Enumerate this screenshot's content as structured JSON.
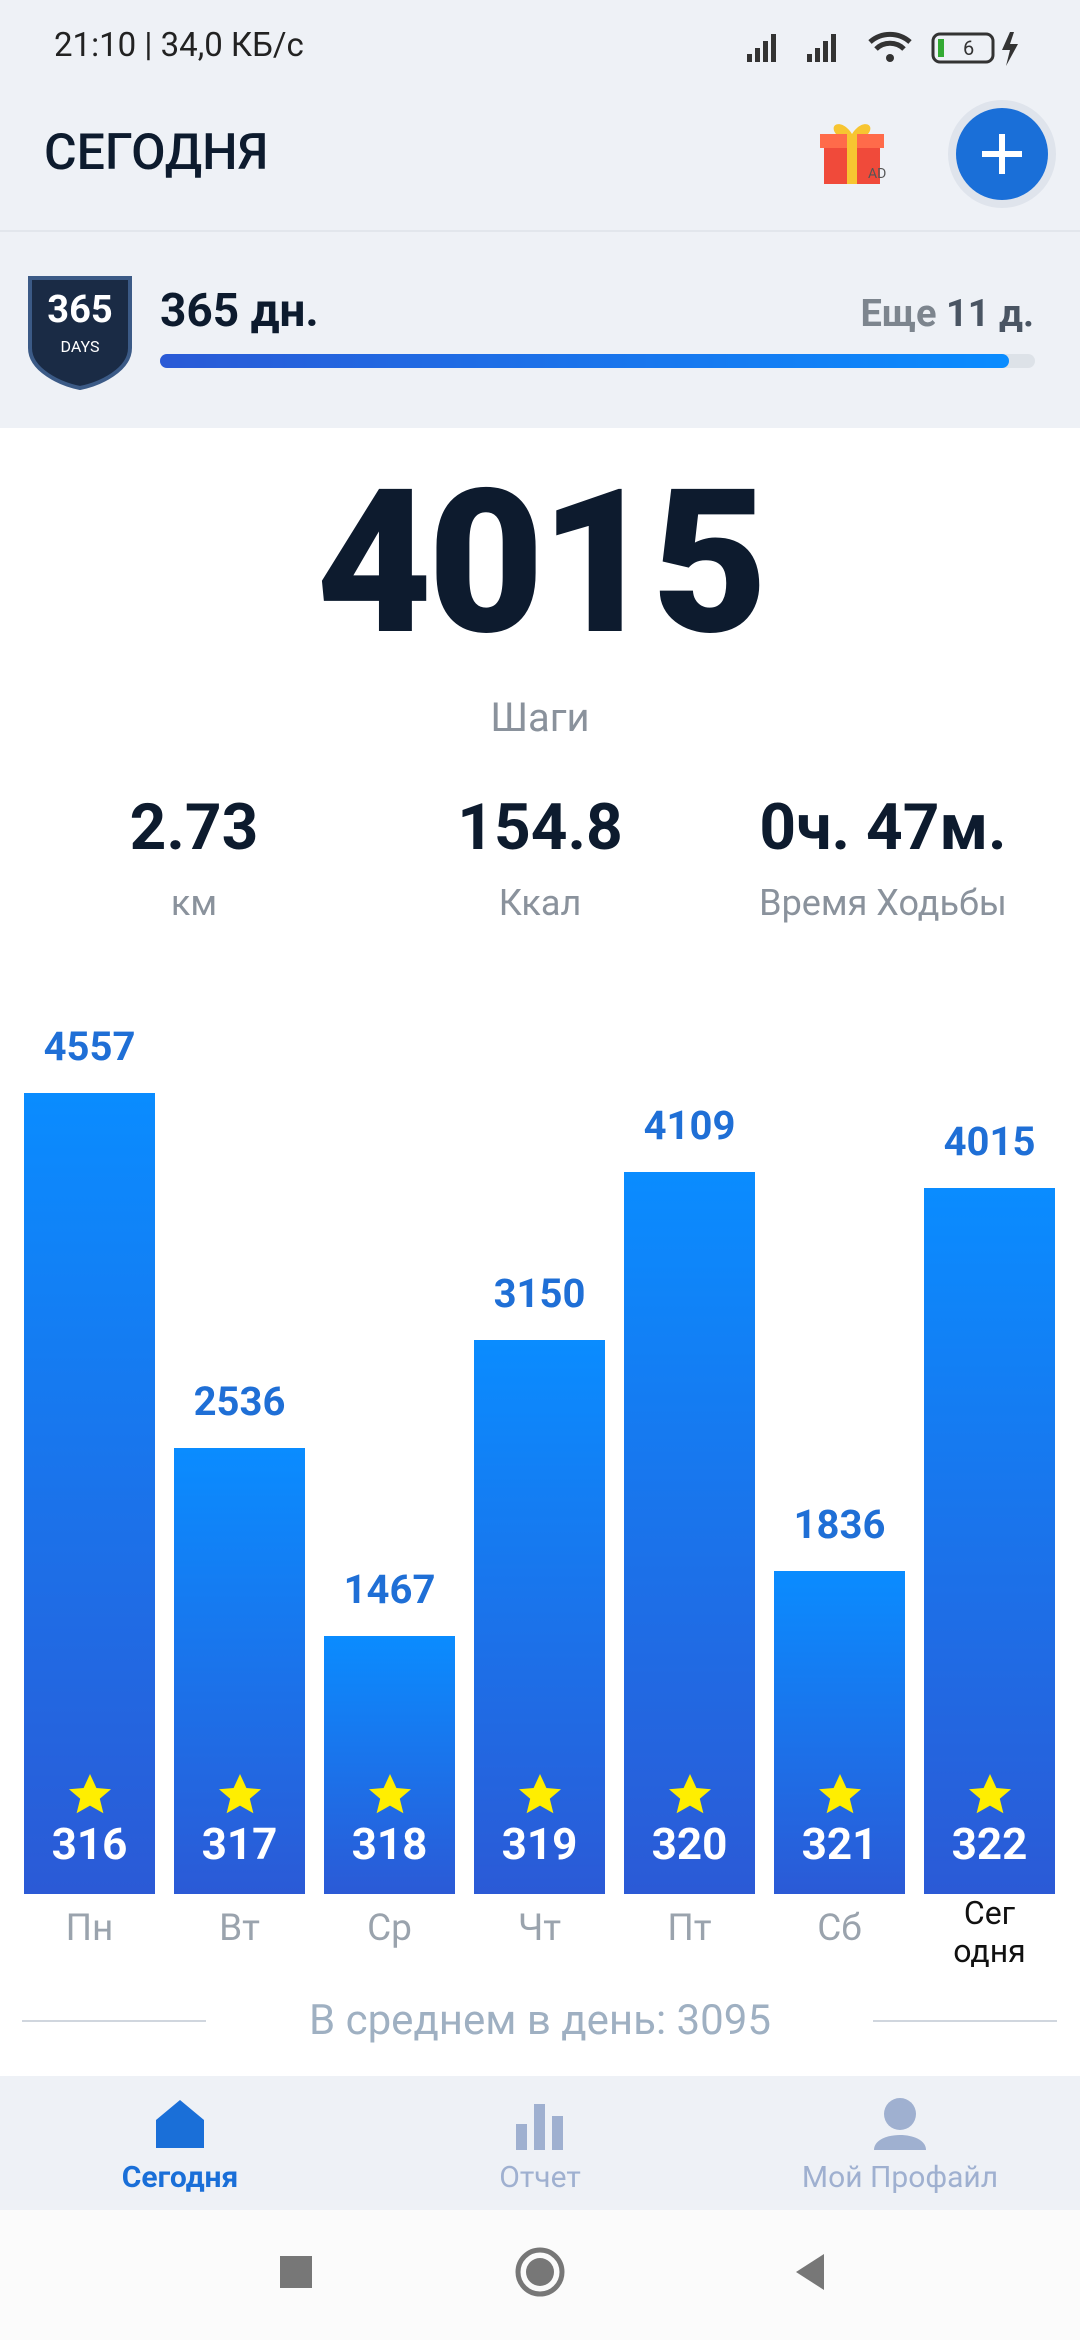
{
  "status_bar": {
    "time_speed": "21:10 | 34,0 КБ/с",
    "battery": "6"
  },
  "header": {
    "title": "СЕГОДНЯ",
    "gift_badge": "AD"
  },
  "streak": {
    "badge_number": "365",
    "badge_text": "DAYS",
    "label": "365 дн.",
    "remaining_prefix": "Еще",
    "remaining": "11 д."
  },
  "summary": {
    "steps": "4015",
    "steps_label": "Шаги",
    "stats": [
      {
        "value": "2.73",
        "label": "км"
      },
      {
        "value": "154.8",
        "label": "Ккал"
      },
      {
        "value": "0ч. 47м.",
        "label": "Время Ходьбы"
      }
    ]
  },
  "weekly_chart": {
    "categories": [
      "Пн",
      "Вт",
      "Ср",
      "Чт",
      "Пт",
      "Сб",
      "Сег\nодня"
    ],
    "values": [
      4557,
      2536,
      1467,
      3150,
      4109,
      1836,
      4015
    ],
    "day_numbers": [
      "316",
      "317",
      "318",
      "319",
      "320",
      "321",
      "322"
    ],
    "average_label": "В среднем в день:",
    "average": "3095"
  },
  "bottom_nav": [
    "Сегодня",
    "Отчет",
    "Мой Профайл"
  ]
}
